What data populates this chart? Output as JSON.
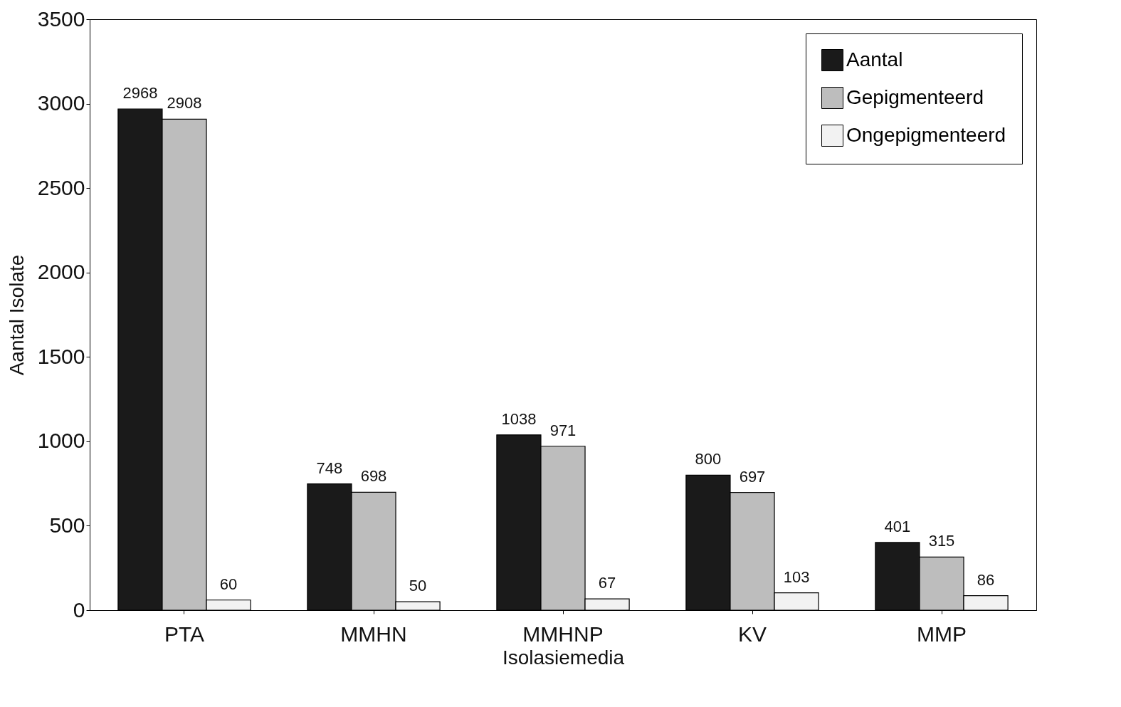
{
  "chart_data": {
    "type": "bar",
    "xlabel": "Isolasiemedia",
    "ylabel": "Aantal Isolate",
    "categories": [
      "PTA",
      "MMHN",
      "MMHNP",
      "KV",
      "MMP"
    ],
    "series": [
      {
        "name": "Aantal",
        "color": "#1a1a1a",
        "values": [
          2968,
          748,
          1038,
          800,
          401
        ]
      },
      {
        "name": "Gepigmenteerd",
        "color": "#bdbdbd",
        "values": [
          2908,
          698,
          971,
          697,
          315
        ]
      },
      {
        "name": "Ongepigmenteerd",
        "color": "#f2f2f2",
        "values": [
          60,
          50,
          67,
          103,
          86
        ]
      }
    ],
    "ylim": [
      0,
      3500
    ],
    "yticks": [
      0,
      500,
      1000,
      1500,
      2000,
      2500,
      3000,
      3500
    ],
    "grid": false,
    "legend": "top right",
    "data_labels": true
  }
}
